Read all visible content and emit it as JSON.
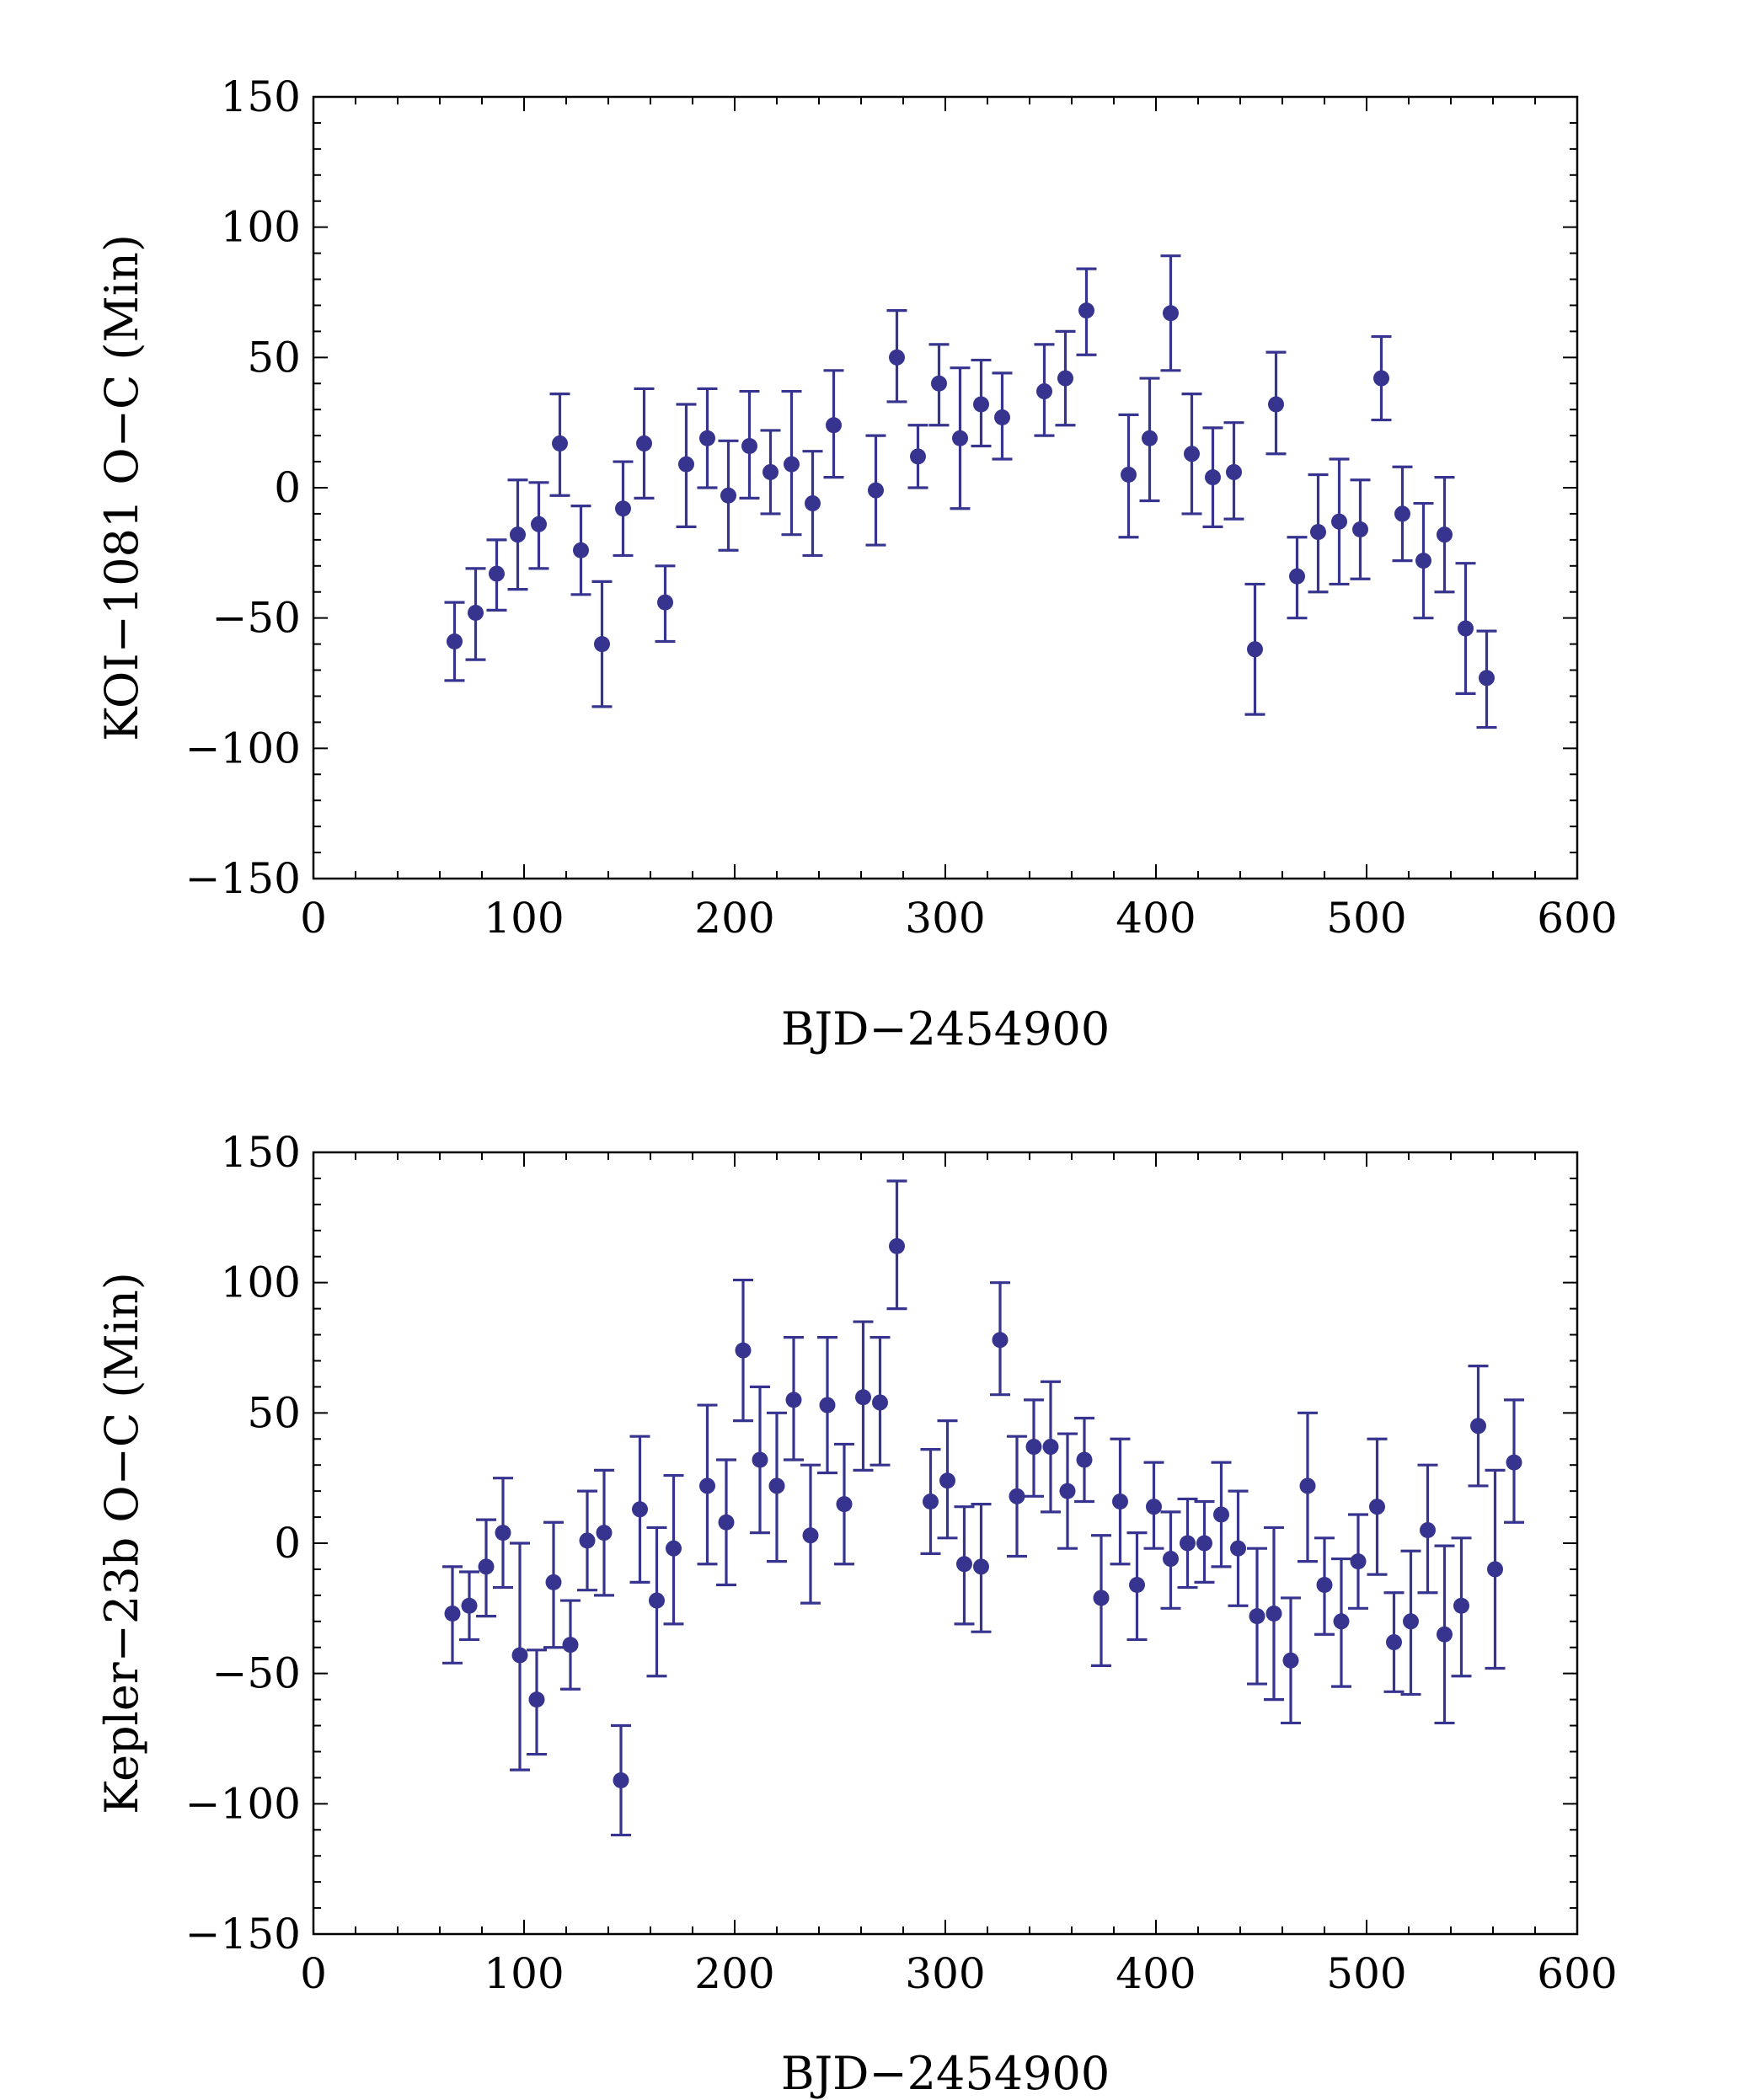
{
  "colors": {
    "series": "#36348f",
    "axis": "#000000",
    "background": "#ffffff"
  },
  "chart_data": [
    {
      "type": "scatter",
      "title": "",
      "xlabel": "BJD−2454900",
      "ylabel": "KOI−1081 O−C (Min)",
      "xlim": [
        0,
        600
      ],
      "ylim": [
        -150,
        150
      ],
      "xticks": [
        0,
        100,
        200,
        300,
        400,
        500,
        600
      ],
      "xtick_labels": [
        "0",
        "100",
        "200",
        "300",
        "400",
        "500",
        "600"
      ],
      "yticks": [
        150,
        100,
        50,
        0,
        -50,
        -100,
        -150
      ],
      "ytick_labels": [
        "150",
        "100",
        "50",
        "0",
        "−50",
        "−100",
        "−150"
      ],
      "grid": false,
      "series": [
        {
          "name": "KOI-1081",
          "points": [
            {
              "x": 67,
              "y": -59,
              "lo": -74,
              "hi": -44
            },
            {
              "x": 77,
              "y": -48,
              "lo": -66,
              "hi": -31
            },
            {
              "x": 87,
              "y": -33,
              "lo": -47,
              "hi": -20
            },
            {
              "x": 97,
              "y": -18,
              "lo": -39,
              "hi": 3
            },
            {
              "x": 107,
              "y": -14,
              "lo": -31,
              "hi": 2
            },
            {
              "x": 117,
              "y": 17,
              "lo": -3,
              "hi": 36
            },
            {
              "x": 127,
              "y": -24,
              "lo": -41,
              "hi": -7
            },
            {
              "x": 137,
              "y": -60,
              "lo": -84,
              "hi": -36
            },
            {
              "x": 147,
              "y": -8,
              "lo": -26,
              "hi": 10
            },
            {
              "x": 157,
              "y": 17,
              "lo": -4,
              "hi": 38
            },
            {
              "x": 167,
              "y": -44,
              "lo": -59,
              "hi": -30
            },
            {
              "x": 177,
              "y": 9,
              "lo": -15,
              "hi": 32
            },
            {
              "x": 187,
              "y": 19,
              "lo": 0,
              "hi": 38
            },
            {
              "x": 197,
              "y": -3,
              "lo": -24,
              "hi": 18
            },
            {
              "x": 207,
              "y": 16,
              "lo": -4,
              "hi": 37
            },
            {
              "x": 217,
              "y": 6,
              "lo": -10,
              "hi": 22
            },
            {
              "x": 227,
              "y": 9,
              "lo": -18,
              "hi": 37
            },
            {
              "x": 237,
              "y": -6,
              "lo": -26,
              "hi": 14
            },
            {
              "x": 247,
              "y": 24,
              "lo": 4,
              "hi": 45
            },
            {
              "x": 267,
              "y": -1,
              "lo": -22,
              "hi": 20
            },
            {
              "x": 277,
              "y": 50,
              "lo": 33,
              "hi": 68
            },
            {
              "x": 287,
              "y": 12,
              "lo": 0,
              "hi": 24
            },
            {
              "x": 297,
              "y": 40,
              "lo": 24,
              "hi": 55
            },
            {
              "x": 307,
              "y": 19,
              "lo": -8,
              "hi": 46
            },
            {
              "x": 317,
              "y": 32,
              "lo": 16,
              "hi": 49
            },
            {
              "x": 327,
              "y": 27,
              "lo": 11,
              "hi": 44
            },
            {
              "x": 347,
              "y": 37,
              "lo": 20,
              "hi": 55
            },
            {
              "x": 357,
              "y": 42,
              "lo": 24,
              "hi": 60
            },
            {
              "x": 367,
              "y": 68,
              "lo": 51,
              "hi": 84
            },
            {
              "x": 387,
              "y": 5,
              "lo": -19,
              "hi": 28
            },
            {
              "x": 397,
              "y": 19,
              "lo": -5,
              "hi": 42
            },
            {
              "x": 407,
              "y": 67,
              "lo": 45,
              "hi": 89
            },
            {
              "x": 417,
              "y": 13,
              "lo": -10,
              "hi": 36
            },
            {
              "x": 427,
              "y": 4,
              "lo": -15,
              "hi": 23
            },
            {
              "x": 437,
              "y": 6,
              "lo": -12,
              "hi": 25
            },
            {
              "x": 447,
              "y": -62,
              "lo": -87,
              "hi": -37
            },
            {
              "x": 457,
              "y": 32,
              "lo": 13,
              "hi": 52
            },
            {
              "x": 467,
              "y": -34,
              "lo": -50,
              "hi": -19
            },
            {
              "x": 477,
              "y": -17,
              "lo": -40,
              "hi": 5
            },
            {
              "x": 487,
              "y": -13,
              "lo": -37,
              "hi": 11
            },
            {
              "x": 497,
              "y": -16,
              "lo": -35,
              "hi": 3
            },
            {
              "x": 507,
              "y": 42,
              "lo": 26,
              "hi": 58
            },
            {
              "x": 517,
              "y": -10,
              "lo": -28,
              "hi": 8
            },
            {
              "x": 527,
              "y": -28,
              "lo": -50,
              "hi": -6
            },
            {
              "x": 537,
              "y": -18,
              "lo": -40,
              "hi": 4
            },
            {
              "x": 547,
              "y": -54,
              "lo": -79,
              "hi": -29
            },
            {
              "x": 557,
              "y": -73,
              "lo": -92,
              "hi": -55
            }
          ]
        }
      ]
    },
    {
      "type": "scatter",
      "title": "",
      "xlabel": "BJD−2454900",
      "ylabel": "Kepler−23b O−C (Min)",
      "xlim": [
        0,
        600
      ],
      "ylim": [
        -150,
        150
      ],
      "xticks": [
        0,
        100,
        200,
        300,
        400,
        500,
        600
      ],
      "xtick_labels": [
        "0",
        "100",
        "200",
        "300",
        "400",
        "500",
        "600"
      ],
      "yticks": [
        150,
        100,
        50,
        0,
        -50,
        -100,
        -150
      ],
      "ytick_labels": [
        "150",
        "100",
        "50",
        "0",
        "−50",
        "−100",
        "−150"
      ],
      "grid": false,
      "series": [
        {
          "name": "Kepler-23b",
          "points": [
            {
              "x": 66,
              "y": -27,
              "lo": -46,
              "hi": -9
            },
            {
              "x": 74,
              "y": -24,
              "lo": -37,
              "hi": -11
            },
            {
              "x": 82,
              "y": -9,
              "lo": -28,
              "hi": 9
            },
            {
              "x": 90,
              "y": 4,
              "lo": -17,
              "hi": 25
            },
            {
              "x": 98,
              "y": -43,
              "lo": -87,
              "hi": 0
            },
            {
              "x": 106,
              "y": -60,
              "lo": -81,
              "hi": -41
            },
            {
              "x": 114,
              "y": -15,
              "lo": -40,
              "hi": 8
            },
            {
              "x": 122,
              "y": -39,
              "lo": -56,
              "hi": -22
            },
            {
              "x": 130,
              "y": 1,
              "lo": -18,
              "hi": 20
            },
            {
              "x": 138,
              "y": 4,
              "lo": -20,
              "hi": 28
            },
            {
              "x": 146,
              "y": -91,
              "lo": -112,
              "hi": -70
            },
            {
              "x": 155,
              "y": 13,
              "lo": -15,
              "hi": 41
            },
            {
              "x": 163,
              "y": -22,
              "lo": -51,
              "hi": 6
            },
            {
              "x": 171,
              "y": -2,
              "lo": -31,
              "hi": 26
            },
            {
              "x": 187,
              "y": 22,
              "lo": -8,
              "hi": 53
            },
            {
              "x": 196,
              "y": 8,
              "lo": -16,
              "hi": 32
            },
            {
              "x": 204,
              "y": 74,
              "lo": 47,
              "hi": 101
            },
            {
              "x": 212,
              "y": 32,
              "lo": 4,
              "hi": 60
            },
            {
              "x": 220,
              "y": 22,
              "lo": -7,
              "hi": 50
            },
            {
              "x": 228,
              "y": 55,
              "lo": 32,
              "hi": 79
            },
            {
              "x": 236,
              "y": 3,
              "lo": -23,
              "hi": 30
            },
            {
              "x": 244,
              "y": 53,
              "lo": 27,
              "hi": 79
            },
            {
              "x": 252,
              "y": 15,
              "lo": -8,
              "hi": 38
            },
            {
              "x": 261,
              "y": 56,
              "lo": 28,
              "hi": 85
            },
            {
              "x": 269,
              "y": 54,
              "lo": 30,
              "hi": 79
            },
            {
              "x": 277,
              "y": 114,
              "lo": 90,
              "hi": 139
            },
            {
              "x": 293,
              "y": 16,
              "lo": -4,
              "hi": 36
            },
            {
              "x": 301,
              "y": 24,
              "lo": 2,
              "hi": 47
            },
            {
              "x": 309,
              "y": -8,
              "lo": -31,
              "hi": 14
            },
            {
              "x": 317,
              "y": -9,
              "lo": -34,
              "hi": 15
            },
            {
              "x": 326,
              "y": 78,
              "lo": 57,
              "hi": 100
            },
            {
              "x": 334,
              "y": 18,
              "lo": -5,
              "hi": 41
            },
            {
              "x": 342,
              "y": 37,
              "lo": 18,
              "hi": 55
            },
            {
              "x": 350,
              "y": 37,
              "lo": 12,
              "hi": 62
            },
            {
              "x": 358,
              "y": 20,
              "lo": -2,
              "hi": 42
            },
            {
              "x": 366,
              "y": 32,
              "lo": 16,
              "hi": 48
            },
            {
              "x": 374,
              "y": -21,
              "lo": -47,
              "hi": 3
            },
            {
              "x": 383,
              "y": 16,
              "lo": -8,
              "hi": 40
            },
            {
              "x": 391,
              "y": -16,
              "lo": -37,
              "hi": 4
            },
            {
              "x": 399,
              "y": 14,
              "lo": -2,
              "hi": 31
            },
            {
              "x": 407,
              "y": -6,
              "lo": -25,
              "hi": 12
            },
            {
              "x": 415,
              "y": 0,
              "lo": -17,
              "hi": 17
            },
            {
              "x": 423,
              "y": 0,
              "lo": -15,
              "hi": 16
            },
            {
              "x": 431,
              "y": 11,
              "lo": -9,
              "hi": 31
            },
            {
              "x": 439,
              "y": -2,
              "lo": -24,
              "hi": 20
            },
            {
              "x": 448,
              "y": -28,
              "lo": -54,
              "hi": -2
            },
            {
              "x": 456,
              "y": -27,
              "lo": -60,
              "hi": 6
            },
            {
              "x": 464,
              "y": -45,
              "lo": -69,
              "hi": -21
            },
            {
              "x": 472,
              "y": 22,
              "lo": -7,
              "hi": 50
            },
            {
              "x": 480,
              "y": -16,
              "lo": -35,
              "hi": 2
            },
            {
              "x": 488,
              "y": -30,
              "lo": -55,
              "hi": -6
            },
            {
              "x": 496,
              "y": -7,
              "lo": -25,
              "hi": 11
            },
            {
              "x": 505,
              "y": 14,
              "lo": -12,
              "hi": 40
            },
            {
              "x": 513,
              "y": -38,
              "lo": -57,
              "hi": -19
            },
            {
              "x": 521,
              "y": -30,
              "lo": -58,
              "hi": -3
            },
            {
              "x": 529,
              "y": 5,
              "lo": -19,
              "hi": 30
            },
            {
              "x": 537,
              "y": -35,
              "lo": -69,
              "hi": -1
            },
            {
              "x": 545,
              "y": -24,
              "lo": -51,
              "hi": 2
            },
            {
              "x": 553,
              "y": 45,
              "lo": 22,
              "hi": 68
            },
            {
              "x": 561,
              "y": -10,
              "lo": -48,
              "hi": 28
            },
            {
              "x": 570,
              "y": 31,
              "lo": 8,
              "hi": 55
            }
          ]
        }
      ]
    }
  ]
}
